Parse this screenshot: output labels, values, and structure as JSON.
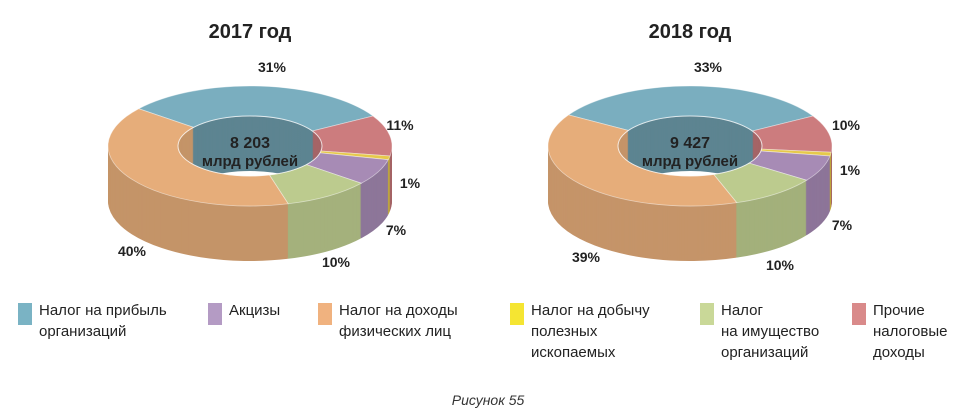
{
  "chart_data": [
    {
      "type": "pie",
      "subtype": "3d-donut",
      "title": "2017 год",
      "center_label": [
        "8 203",
        "млрд рублей"
      ],
      "slices": [
        {
          "key": "profit",
          "value": 31,
          "label": "31%"
        },
        {
          "key": "other",
          "value": 11,
          "label": "11%"
        },
        {
          "key": "extraction",
          "value": 1,
          "label": "1%"
        },
        {
          "key": "excise",
          "value": 7,
          "label": "7%"
        },
        {
          "key": "property",
          "value": 10,
          "label": "10%"
        },
        {
          "key": "income",
          "value": 40,
          "label": "40%"
        }
      ]
    },
    {
      "type": "pie",
      "subtype": "3d-donut",
      "title": "2018 год",
      "center_label": [
        "9 427",
        "млрд рублей"
      ],
      "slices": [
        {
          "key": "profit",
          "value": 33,
          "label": "33%"
        },
        {
          "key": "other",
          "value": 10,
          "label": "10%"
        },
        {
          "key": "extraction",
          "value": 1,
          "label": "1%"
        },
        {
          "key": "excise",
          "value": 7,
          "label": "7%"
        },
        {
          "key": "property",
          "value": 10,
          "label": "10%"
        },
        {
          "key": "income",
          "value": 39,
          "label": "39%"
        }
      ]
    }
  ],
  "legend": [
    {
      "key": "profit",
      "color": "#7ab3c4",
      "lines": [
        "Налог на прибыль",
        "организаций"
      ]
    },
    {
      "key": "excise",
      "color": "#b49bc4",
      "lines": [
        "Акцизы"
      ]
    },
    {
      "key": "income",
      "color": "#f0b27f",
      "lines": [
        "Налог на доходы",
        "физических лиц"
      ]
    },
    {
      "key": "extraction",
      "color": "#f5e532",
      "lines": [
        "Налог на добычу",
        "полезных",
        "ископаемых"
      ]
    },
    {
      "key": "property",
      "color": "#c9d898",
      "lines": [
        "Налог",
        "на имущество",
        "организаций"
      ]
    },
    {
      "key": "other",
      "color": "#d98a8a",
      "lines": [
        "Прочие",
        "налоговые",
        "доходы"
      ]
    }
  ],
  "slice_colors": {
    "profit": "#7aaebf",
    "other": "#cc7c7e",
    "extraction": "#e6c94a",
    "excise": "#a78bb5",
    "property": "#bccb8e",
    "income": "#e6ad7a"
  },
  "caption": "Рисунок 55"
}
